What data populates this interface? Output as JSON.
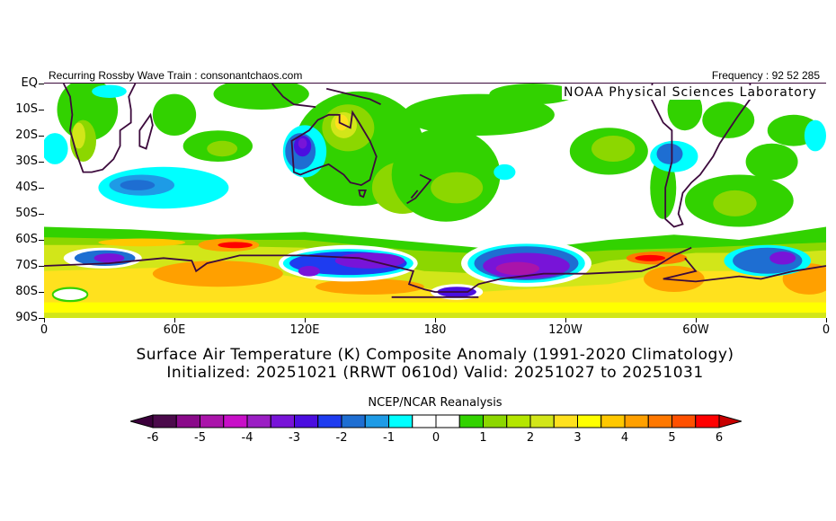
{
  "header": {
    "left": "Recurring Rossby Wave Train : consonantchaos.com",
    "right": "Frequency : 92 52 285",
    "lab": "NOAA Physical Sciences Laboratory"
  },
  "map": {
    "y_ticks": [
      "EQ",
      "10S",
      "20S",
      "30S",
      "40S",
      "50S",
      "60S",
      "70S",
      "80S",
      "90S"
    ],
    "x_ticks": [
      "0",
      "60E",
      "120E",
      "180",
      "120W",
      "60W",
      "0"
    ],
    "title_line1": "Surface Air Temperature (K) Composite Anomaly (1991-2020 Climatology)",
    "title_line2": "Initialized: 20251021 (RRWT 0610d) Valid: 20251027 to 20251031"
  },
  "colorbar": {
    "title": "NCEP/NCAR Reanalysis",
    "labels": [
      "-6",
      "-5",
      "-4",
      "-3",
      "-2",
      "-1",
      "0",
      "1",
      "2",
      "3",
      "4",
      "5",
      "6"
    ],
    "under_color": "#3c003c",
    "over_color": "#c80000",
    "colors": [
      "#4b0a4b",
      "#8a0a8a",
      "#aa14aa",
      "#c80fc8",
      "#9b1ec4",
      "#7814d8",
      "#4b0ee0",
      "#1e3cf0",
      "#1e6ed2",
      "#1e9be6",
      "#00ffff",
      "#ffffff",
      "#ffffff",
      "#32d200",
      "#8cd700",
      "#b4e600",
      "#d2e619",
      "#ffe11e",
      "#ffff00",
      "#ffc800",
      "#ffa000",
      "#ff7800",
      "#ff5000",
      "#ff0000"
    ]
  },
  "palette": {
    "coast": "#3c0a3c"
  }
}
